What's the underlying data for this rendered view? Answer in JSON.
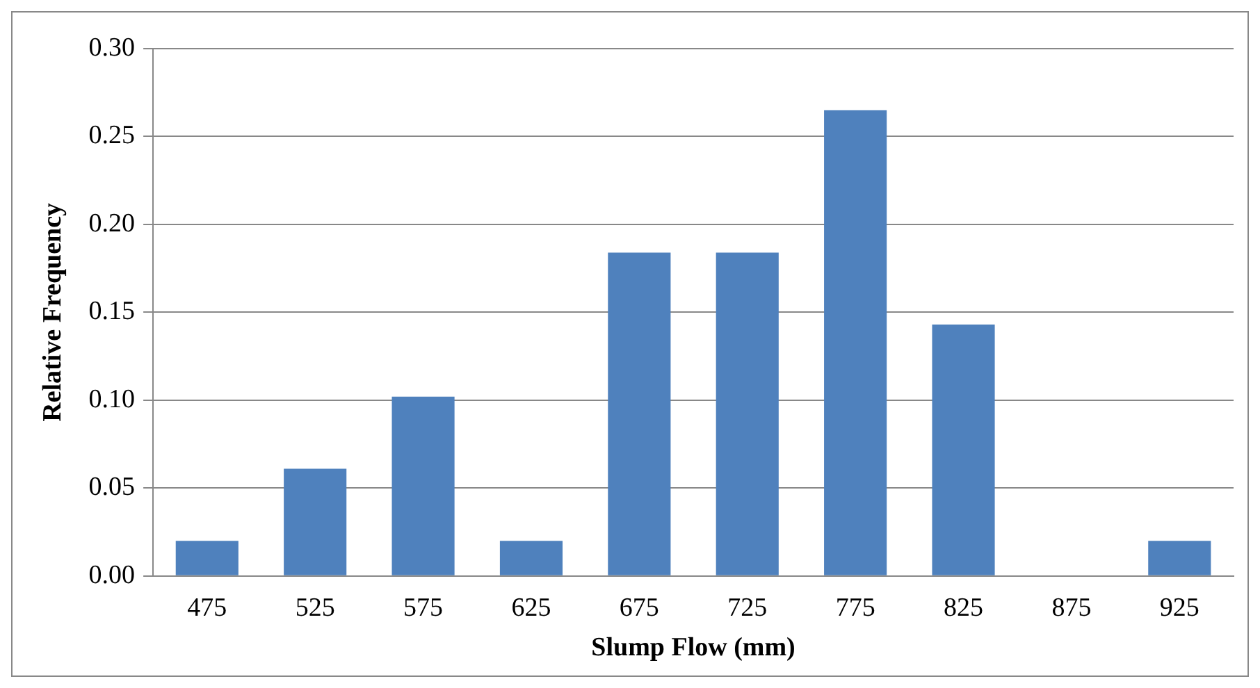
{
  "chart_data": {
    "type": "bar",
    "xlabel": "Slump Flow (mm)",
    "ylabel": "Relative Frequency",
    "categories": [
      "475",
      "525",
      "575",
      "625",
      "675",
      "725",
      "775",
      "825",
      "875",
      "925"
    ],
    "values": [
      0.02,
      0.061,
      0.102,
      0.02,
      0.184,
      0.184,
      0.265,
      0.143,
      0,
      0.02
    ],
    "color": "#4f81bd",
    "ylim": [
      0,
      0.3
    ],
    "yticks": [
      {
        "value": 0,
        "label": "0.00"
      },
      {
        "value": 0.05,
        "label": "0.05"
      },
      {
        "value": 0.1,
        "label": "0.10"
      },
      {
        "value": 0.15,
        "label": "0.15"
      },
      {
        "value": 0.2,
        "label": "0.20"
      },
      {
        "value": 0.25,
        "label": "0.25"
      },
      {
        "value": 0.3,
        "label": "0.30"
      }
    ],
    "grid": "y",
    "legend": false
  }
}
